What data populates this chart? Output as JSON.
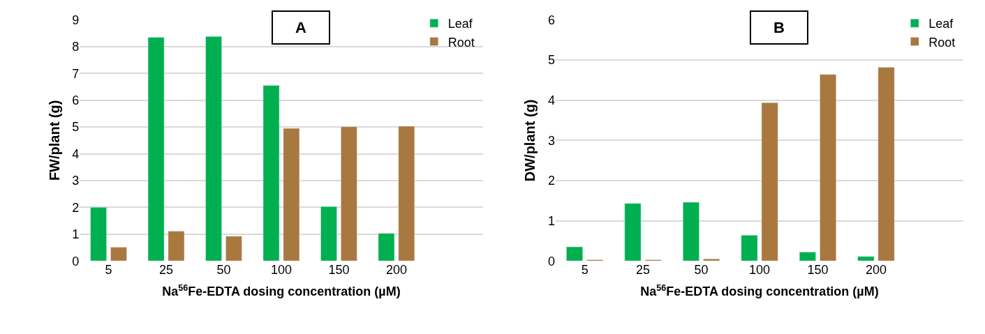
{
  "chart_data": [
    {
      "type": "bar",
      "title": "A",
      "categories": [
        "5",
        "25",
        "50",
        "100",
        "150",
        "200",
        null
      ],
      "xlabel": "Na$^{56}$Fe-EDTA dosing concentration (µM)",
      "ylabel": "FW/plant (g)",
      "ylim": [
        0,
        9
      ],
      "yticks": [
        0,
        1,
        2,
        3,
        4,
        5,
        6,
        7,
        8,
        9
      ],
      "grid": "y",
      "legend": "top right",
      "series": [
        {
          "name": "Leaf",
          "color": "#00b050",
          "values": [
            2.0,
            8.35,
            8.38,
            6.55,
            2.03,
            1.03,
            null
          ]
        },
        {
          "name": "Root",
          "color": "#a9783f",
          "values": [
            0.51,
            1.11,
            0.92,
            4.95,
            5.01,
            5.03,
            null
          ]
        }
      ]
    },
    {
      "type": "bar",
      "title": "B",
      "categories": [
        "5",
        "25",
        "50",
        "100",
        "150",
        "200",
        null
      ],
      "xlabel": "Na$^{56}$Fe-EDTA dosing concentration (µM)",
      "ylabel": "DW/plant (g)",
      "ylim": [
        0,
        6
      ],
      "yticks": [
        0,
        1,
        2,
        3,
        4,
        5,
        6
      ],
      "grid": "y",
      "legend": "top right",
      "series": [
        {
          "name": "Leaf",
          "color": "#00b050",
          "values": [
            0.35,
            1.43,
            1.46,
            0.64,
            0.22,
            0.11,
            null
          ]
        },
        {
          "name": "Root",
          "color": "#a9783f",
          "values": [
            0.03,
            0.03,
            0.05,
            3.94,
            4.64,
            4.82,
            null
          ]
        }
      ]
    }
  ]
}
